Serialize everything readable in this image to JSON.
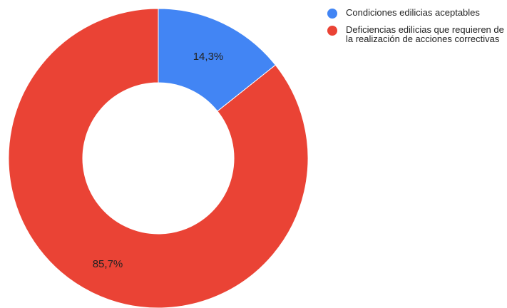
{
  "chart_data": {
    "type": "pie",
    "donut": true,
    "categories": [
      "Condiciones edilicias aceptables",
      "Deficiencias edilicias que requieren de la realización de acciones correctivas"
    ],
    "values": [
      14.3,
      85.7
    ],
    "labels": [
      "14,3%",
      "85,7%"
    ],
    "colors": [
      "#4285F4",
      "#EA4335"
    ],
    "legend_position": "right"
  }
}
